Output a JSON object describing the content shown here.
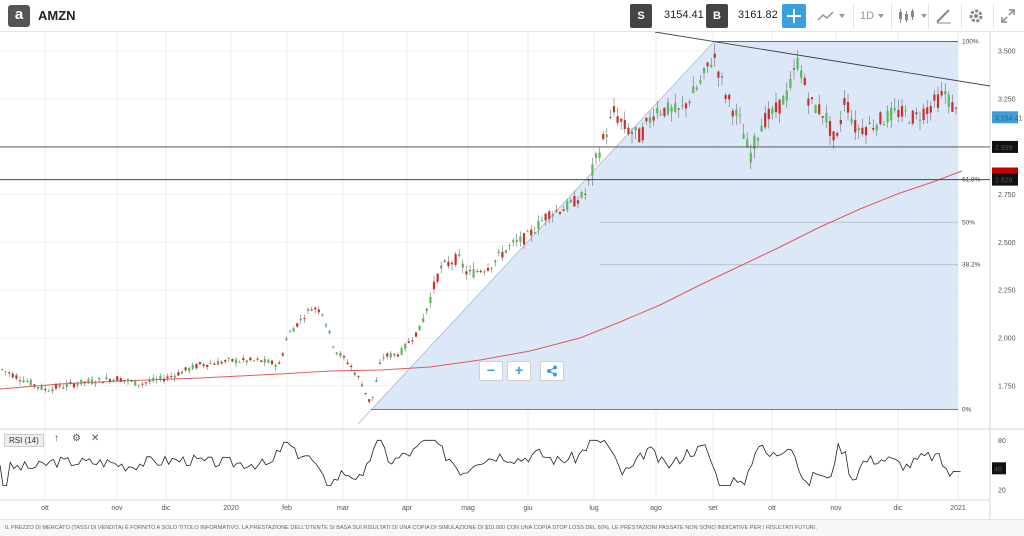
{
  "toolbar": {
    "logo_char": "a",
    "symbol": "AMZN",
    "sell_badge": "S",
    "sell_price": "3154.41",
    "buy_badge": "B",
    "buy_price": "3161.82",
    "timeframe": "1D",
    "accent": "#3aa0dd"
  },
  "chart_data": {
    "type": "candlestick",
    "y_ticks": [
      "3.500",
      "3.250",
      "3.000",
      "2.750",
      "2.500",
      "2.250",
      "2.000",
      "1.750"
    ],
    "ylim": [
      1550,
      3600
    ],
    "x_labels": [
      "ott",
      "nov",
      "dic",
      "2020",
      "feb",
      "mar",
      "apr",
      "mag",
      "giu",
      "lug",
      "ago",
      "set",
      "ott",
      "nov",
      "dic",
      "2021"
    ],
    "price_tags": {
      "current": "3.154.41",
      "level_1": "2.999",
      "level_2": "2.828"
    },
    "fib_levels": [
      {
        "label": "100%",
        "value": 3550
      },
      {
        "label": "61.8%",
        "value": 2828
      },
      {
        "label": "50%",
        "value": 2605
      },
      {
        "label": "38.2%",
        "value": 2383
      },
      {
        "label": "0%",
        "value": 1626
      }
    ],
    "horizontal_lines": [
      2999,
      2828
    ],
    "rsi": {
      "label": "RSI (14)",
      "ticks": [
        "80",
        "46",
        "20"
      ],
      "current": "46"
    },
    "colors": {
      "up": "#5cb85c",
      "down": "#c9302c",
      "ma": "#e05a5a",
      "fib_fill": "#d6e4f7",
      "current_tag": "#3aa0dd",
      "dark_tag": "#111111",
      "red_tag": "#c00000"
    }
  },
  "zoom": {
    "minus": "−",
    "plus": "+"
  },
  "disclaimer": "IL PREZZO DI MERCATO (TASSI DI VENDITA) È FORNITO A SOLO TITOLO INFORMATIVO. LA PRESTAZIONE DELL'UTENTE SI BASA SUI RISULTATI DI UNA COPIA DI SIMULAZIONE DI $10.000 CON UNA COPIA STOP LOSS DEL 60%. LE PRESTAZIONI PASSATE NON SONO INDICATIVE PER I RISULTATI FUTURI."
}
